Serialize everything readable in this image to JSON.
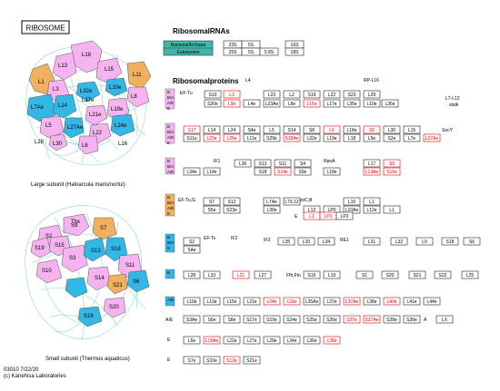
{
  "title": "RIBOSOME",
  "colors": {
    "pink": "#f5b4f0",
    "blue": "#33b8e6",
    "orange": "#f0b060",
    "teal": "#3fb8a8",
    "red": "#e00000"
  },
  "rrna": {
    "heading": "RibosomalRNAs",
    "kinds": [
      "Bacteria/Archaea",
      "Eukaryotes"
    ],
    "bacteria": [
      "23S",
      "5S",
      "16S"
    ],
    "eukaryotes": [
      "25S",
      "5S",
      "5.8S",
      "18S"
    ]
  },
  "proteins": {
    "heading": "Ribosomalproteins",
    "l7l12_stalk": [
      "L7-L12",
      "stalk"
    ],
    "secy": "SecY",
    "ef_tu": "EF-Tu",
    "if1": "IF1",
    "rpoa": "RpoA",
    "ef_tug": "EF-Tu,G",
    "rpoc_b": "RpoC,B",
    "ef_ts": "EF-Ts",
    "if2": "IF2",
    "if3": "IF3",
    "re1": "RE1",
    "ffh": "Ffh,Ftn",
    "rp_l16_label": "RP-L16",
    "group_sites": {
      "g1": [
        "B",
        "B/A",
        "A/E",
        "E"
      ],
      "g2": [
        "B",
        "B/A",
        "A/E",
        "E"
      ],
      "g3": [
        "B",
        "B/A",
        "A/E"
      ],
      "g4": [
        "B",
        "B/A",
        "A/E",
        "E"
      ],
      "g5": [
        "B",
        "B/A",
        "E"
      ],
      "g6": "B",
      "g7": "A/E",
      "g8": "A/E",
      "g9": "E",
      "g10": "E"
    },
    "rows": {
      "r1_top": [
        "L4",
        "RP-L16"
      ],
      "r1": [
        "S10",
        "L3",
        "L23",
        "L2",
        "S19",
        "L22",
        "S23",
        "L29"
      ],
      "r1b": [
        "S20e",
        "L9e",
        "L4e",
        "L23Ae",
        "L8e",
        "L15e",
        "L17e",
        "L35e",
        "L10e",
        "L36e"
      ],
      "r2": [
        "S17",
        "L14",
        "L24",
        "S4e",
        "L5",
        "S14",
        "S8",
        "L6",
        "L18e",
        "S5",
        "L30",
        "L15"
      ],
      "r2b": [
        "S11e",
        "L23e",
        "L26e",
        "L11e",
        "S29e",
        "S15Ae",
        "L32e",
        "L19e",
        "L18",
        "L5e",
        "S2e",
        "L7e",
        "L27Ae"
      ],
      "r3": [
        "L36",
        "S13",
        "S11",
        "S4",
        "L17",
        "S9"
      ],
      "r3b": [
        "L34e",
        "L14e",
        "S18",
        "S14e",
        "S9e",
        "L18e",
        "L13Ae",
        "S16e"
      ],
      "r4": [
        "S7",
        "S12",
        "L7Ae",
        "L7/L12",
        "L10",
        "L1"
      ],
      "r4b": [
        "S5e",
        "S23e",
        "L30e",
        "L12",
        "LP0",
        "L10Ae",
        "L12e",
        "L1",
        "E",
        "L1",
        "LP1",
        "LP2"
      ],
      "r5": [
        "S2",
        "L35",
        "L20",
        "L34",
        "L31",
        "L32",
        "L9",
        "S18",
        "S6"
      ],
      "r5b": [
        "SAe"
      ],
      "r6": [
        "L28",
        "L33",
        "L21",
        "L27",
        "S16",
        "L19",
        "S1",
        "S20",
        "S21",
        "S22",
        "L25"
      ],
      "r7": [
        "L10e",
        "L13e",
        "L15e",
        "L21e",
        "L24e",
        "L31e",
        "L35Ae",
        "L37e",
        "L37Ae",
        "L38e",
        "L40e",
        "L41e",
        "L44e"
      ],
      "r8": [
        "S3Ae",
        "S6e",
        "S8e",
        "S17e",
        "S19e",
        "S24e",
        "S25e",
        "S26e",
        "S27e",
        "S27Ae",
        "S28e",
        "S30e",
        "A",
        "LX"
      ],
      "r9": [
        "L6e",
        "L18Ae",
        "L22e",
        "L27e",
        "L29e",
        "L34e",
        "L36e",
        "L38e"
      ],
      "r10": [
        "S7e",
        "S10e",
        "S12e",
        "S21e"
      ]
    }
  },
  "large_labels": [
    "L18",
    "L13",
    "L15",
    "L1",
    "L3",
    "L7Ae",
    "L14",
    "L32e",
    "L10e",
    "L37e",
    "L11",
    "L8",
    "L19e",
    "L21e",
    "L5",
    "L22",
    "L24e",
    "L27Ae",
    "L28",
    "L30",
    "L16",
    "L6"
  ],
  "small_labels": [
    "S9",
    "S2",
    "S7",
    "S19",
    "S15",
    "S3",
    "S18",
    "S11",
    "S13",
    "S14",
    "S10",
    "S6",
    "S20",
    "S16",
    "S21",
    "Thx"
  ],
  "large_caption": "Large subunit (Haloarcula marismortui)",
  "small_caption": "Small subunit (Thermus aquaticus)",
  "footer1": "03010 7/22/20",
  "footer2": "(c) Kanehisa Laboratories"
}
